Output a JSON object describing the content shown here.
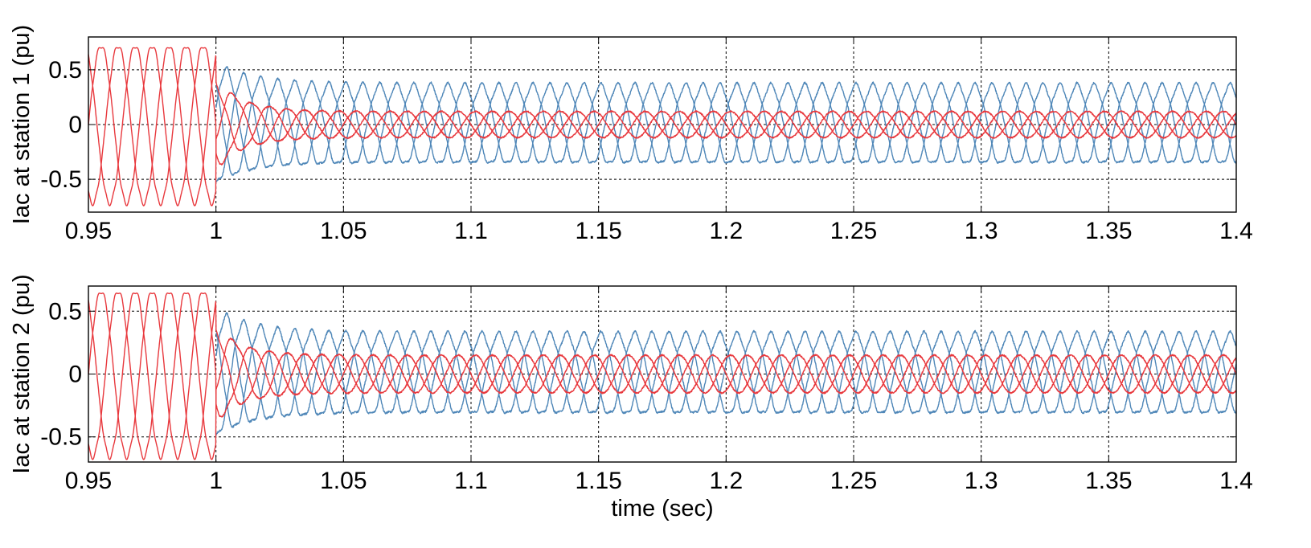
{
  "chart_data": [
    {
      "type": "line",
      "ylabel": "Iac at station 1 (pu)",
      "xlabel": "",
      "xlim": [
        0.95,
        1.4
      ],
      "ylim": [
        -0.8,
        0.8
      ],
      "grid": true,
      "x_ticks": [
        "0.95",
        "1",
        "1.05",
        "1.1",
        "1.15",
        "1.2",
        "1.25",
        "1.3",
        "1.35",
        "1.4"
      ],
      "y_ticks": [
        "0.5",
        "0",
        "-0.5"
      ],
      "x_tick_values": [
        0.95,
        1.0,
        1.05,
        1.1,
        1.15,
        1.2,
        1.25,
        1.3,
        1.35,
        1.4
      ],
      "y_tick_values": [
        0.5,
        0,
        -0.5
      ],
      "series": [
        {
          "color": "#e8383d",
          "phases": 3,
          "frequency_hz": 50,
          "amplitude_pre": 0.72,
          "amplitude_post": 0.12,
          "switch_time": 1.0,
          "visible_until": 1.0,
          "sample_points": [
            {
              "x": 0.95,
              "y": 0.0
            },
            {
              "x": 0.955,
              "y": 0.72
            },
            {
              "x": 0.96,
              "y": 0.0
            },
            {
              "x": 0.965,
              "y": -0.72
            },
            {
              "x": 1.0,
              "y": 0.7
            },
            {
              "x": 1.05,
              "y": 0.12
            },
            {
              "x": 1.2,
              "y": 0.12
            },
            {
              "x": 1.4,
              "y": 0.12
            }
          ]
        },
        {
          "color": "#4f87b8",
          "phases": 3,
          "frequency_hz": 50,
          "amplitude_pre": 0.0,
          "amplitude_post": 0.36,
          "switch_time": 1.0,
          "visible_from": 1.0,
          "sample_points": [
            {
              "x": 1.0,
              "y": 0.5
            },
            {
              "x": 1.005,
              "y": -0.55
            },
            {
              "x": 1.05,
              "y": 0.36
            },
            {
              "x": 1.2,
              "y": 0.34
            },
            {
              "x": 1.4,
              "y": 0.34
            }
          ]
        }
      ]
    },
    {
      "type": "line",
      "ylabel": "Iac at station 2 (pu)",
      "xlabel": "time (sec)",
      "xlim": [
        0.95,
        1.4
      ],
      "ylim": [
        -0.7,
        0.7
      ],
      "grid": true,
      "x_ticks": [
        "0.95",
        "1",
        "1.05",
        "1.1",
        "1.15",
        "1.2",
        "1.25",
        "1.3",
        "1.35",
        "1.4"
      ],
      "y_ticks": [
        "0.5",
        "0",
        "-0.5"
      ],
      "x_tick_values": [
        0.95,
        1.0,
        1.05,
        1.1,
        1.15,
        1.2,
        1.25,
        1.3,
        1.35,
        1.4
      ],
      "y_tick_values": [
        0.5,
        0,
        -0.5
      ],
      "series": [
        {
          "color": "#e8383d",
          "phases": 3,
          "frequency_hz": 50,
          "amplitude_pre": 0.66,
          "amplitude_post": 0.15,
          "switch_time": 1.0,
          "visible_until": 1.0,
          "sample_points": [
            {
              "x": 0.95,
              "y": 0.0
            },
            {
              "x": 0.955,
              "y": 0.66
            },
            {
              "x": 0.965,
              "y": -0.66
            },
            {
              "x": 1.0,
              "y": 0.62
            },
            {
              "x": 1.05,
              "y": 0.15
            },
            {
              "x": 1.2,
              "y": 0.15
            },
            {
              "x": 1.4,
              "y": 0.15
            }
          ]
        },
        {
          "color": "#4f87b8",
          "phases": 3,
          "frequency_hz": 50,
          "amplitude_pre": 0.0,
          "amplitude_post": 0.32,
          "switch_time": 1.0,
          "visible_from": 1.0,
          "sample_points": [
            {
              "x": 1.0,
              "y": 0.6
            },
            {
              "x": 1.007,
              "y": -0.45
            },
            {
              "x": 1.05,
              "y": 0.36
            },
            {
              "x": 1.2,
              "y": 0.32
            },
            {
              "x": 1.4,
              "y": 0.32
            }
          ]
        }
      ]
    }
  ]
}
